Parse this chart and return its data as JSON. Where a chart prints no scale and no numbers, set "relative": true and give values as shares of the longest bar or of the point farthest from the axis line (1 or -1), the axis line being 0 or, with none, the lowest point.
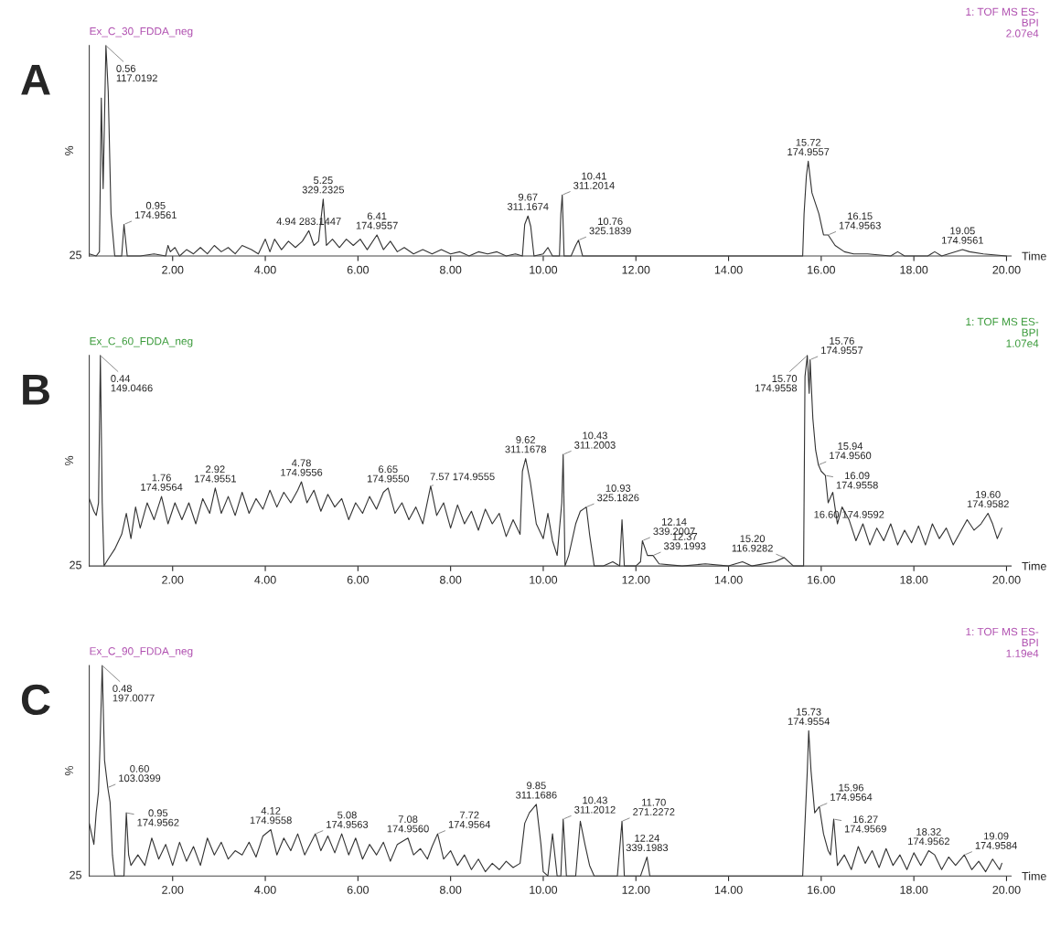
{
  "chart_data": [
    {
      "type": "line",
      "title": "Ex_C_30_FDDA_neg",
      "subtitle": "1: TOF MS ES-\nBPI\n2.07e4",
      "xlabel": "Time",
      "ylabel": "%",
      "relative": true,
      "xlim": [
        0.2,
        20.1
      ],
      "xticks": [
        {
          "value": 2,
          "label": "2.00"
        },
        {
          "value": 4,
          "label": "4.00"
        },
        {
          "value": 6,
          "label": "6.00"
        },
        {
          "value": 8,
          "label": "8.00"
        },
        {
          "value": 10,
          "label": "10.00"
        },
        {
          "value": 12,
          "label": "12.00"
        },
        {
          "value": 14,
          "label": "14.00"
        },
        {
          "value": 16,
          "label": "16.00"
        },
        {
          "value": 18,
          "label": "18.00"
        },
        {
          "value": 20,
          "label": "20.00"
        }
      ],
      "series": [
        {
          "color": "#333333",
          "x": [
            0.2,
            0.35,
            0.42,
            0.46,
            0.5,
            0.56,
            0.61,
            0.67,
            0.75,
            0.9,
            0.95,
            1.02,
            1.3,
            1.6,
            1.85,
            1.9,
            1.95,
            2.05,
            2.15,
            2.3,
            2.45,
            2.6,
            2.75,
            2.9,
            3.05,
            3.2,
            3.35,
            3.5,
            3.7,
            3.85,
            4.0,
            4.1,
            4.2,
            4.35,
            4.5,
            4.65,
            4.8,
            4.94,
            5.05,
            5.15,
            5.25,
            5.32,
            5.45,
            5.6,
            5.75,
            5.9,
            6.05,
            6.2,
            6.41,
            6.55,
            6.7,
            6.85,
            7.0,
            7.2,
            7.4,
            7.6,
            7.8,
            8.0,
            8.2,
            8.4,
            8.6,
            8.8,
            9.0,
            9.2,
            9.4,
            9.55,
            9.6,
            9.67,
            9.73,
            9.8,
            10.0,
            10.1,
            10.2,
            10.35,
            10.38,
            10.41,
            10.45,
            10.6,
            10.7,
            10.76,
            10.85,
            11.5,
            12.5,
            13.5,
            14.5,
            15.5,
            15.6,
            15.63,
            15.68,
            15.72,
            15.8,
            15.95,
            16.05,
            16.15,
            16.3,
            16.5,
            16.7,
            17.0,
            17.5,
            17.65,
            17.8,
            18.3,
            18.45,
            18.6,
            19.05,
            19.2,
            19.5,
            20.0
          ],
          "values": [
            0.01,
            0.0,
            0.02,
            0.75,
            0.32,
            1.0,
            0.78,
            0.2,
            0.0,
            0.0,
            0.15,
            0.0,
            0.0,
            0.01,
            0.0,
            0.05,
            0.02,
            0.04,
            0.0,
            0.03,
            0.01,
            0.04,
            0.01,
            0.05,
            0.02,
            0.04,
            0.01,
            0.05,
            0.03,
            0.01,
            0.08,
            0.02,
            0.08,
            0.03,
            0.07,
            0.04,
            0.07,
            0.12,
            0.05,
            0.07,
            0.27,
            0.05,
            0.08,
            0.04,
            0.08,
            0.05,
            0.08,
            0.03,
            0.1,
            0.03,
            0.07,
            0.02,
            0.04,
            0.01,
            0.03,
            0.01,
            0.03,
            0.01,
            0.02,
            0.0,
            0.02,
            0.01,
            0.02,
            0.0,
            0.01,
            0.0,
            0.15,
            0.19,
            0.14,
            0.0,
            0.01,
            0.04,
            0.0,
            0.0,
            0.2,
            0.29,
            0.0,
            0.0,
            0.05,
            0.075,
            0.0,
            0.0,
            0.0,
            0.0,
            0.0,
            0.0,
            0.0,
            0.2,
            0.38,
            0.45,
            0.3,
            0.2,
            0.1,
            0.1,
            0.05,
            0.02,
            0.01,
            0.01,
            0.0,
            0.02,
            0.0,
            0.0,
            0.02,
            0.0,
            0.03,
            0.02,
            0.01,
            0.0
          ]
        }
      ],
      "annotations": [
        "A",
        "25",
        {
          "text": "0.56\n117.0192",
          "x": 0.56,
          "y": 1.0
        },
        {
          "text": "0.95\n174.9561",
          "x": 0.95,
          "y": 0.15
        },
        {
          "text": "4.94 283.1447",
          "x": 4.94,
          "y": 0.12
        },
        {
          "text": "5.25\n329.2325",
          "x": 5.25,
          "y": 0.27
        },
        {
          "text": "6.41\n174.9557",
          "x": 6.41,
          "y": 0.1
        },
        {
          "text": "9.67\n311.1674",
          "x": 9.67,
          "y": 0.19
        },
        {
          "text": "10.41\n311.2014",
          "x": 10.41,
          "y": 0.29
        },
        {
          "text": "10.76\n325.1839",
          "x": 10.76,
          "y": 0.075
        },
        {
          "text": "15.72\n174.9557",
          "x": 15.72,
          "y": 0.45
        },
        {
          "text": "16.15\n174.9563",
          "x": 16.15,
          "y": 0.1
        },
        {
          "text": "19.05\n174.9561",
          "x": 19.05,
          "y": 0.03
        }
      ]
    },
    {
      "type": "line",
      "title": "Ex_C_60_FDDA_neg",
      "subtitle": "1: TOF MS ES-\nBPI\n1.07e4",
      "xlabel": "Time",
      "ylabel": "%",
      "relative": true,
      "xlim": [
        0.2,
        20.1
      ],
      "xticks": [
        {
          "value": 2,
          "label": "2.00"
        },
        {
          "value": 4,
          "label": "4.00"
        },
        {
          "value": 6,
          "label": "6.00"
        },
        {
          "value": 8,
          "label": "8.00"
        },
        {
          "value": 10,
          "label": "10.00"
        },
        {
          "value": 12,
          "label": "12.00"
        },
        {
          "value": 14,
          "label": "14.00"
        },
        {
          "value": 16,
          "label": "16.00"
        },
        {
          "value": 18,
          "label": "18.00"
        },
        {
          "value": 20,
          "label": "20.00"
        }
      ],
      "series": [
        {
          "color": "#333333",
          "x": [
            0.2,
            0.3,
            0.35,
            0.4,
            0.44,
            0.48,
            0.52,
            0.6,
            0.75,
            0.9,
            1.0,
            1.1,
            1.2,
            1.3,
            1.45,
            1.6,
            1.76,
            1.9,
            2.05,
            2.2,
            2.35,
            2.5,
            2.65,
            2.8,
            2.92,
            3.05,
            3.2,
            3.35,
            3.5,
            3.65,
            3.8,
            3.95,
            4.1,
            4.25,
            4.4,
            4.55,
            4.7,
            4.78,
            4.9,
            5.05,
            5.2,
            5.35,
            5.5,
            5.65,
            5.8,
            5.95,
            6.1,
            6.25,
            6.4,
            6.55,
            6.65,
            6.8,
            6.95,
            7.1,
            7.25,
            7.4,
            7.57,
            7.7,
            7.85,
            8.0,
            8.15,
            8.3,
            8.45,
            8.6,
            8.75,
            8.9,
            9.05,
            9.2,
            9.35,
            9.5,
            9.55,
            9.62,
            9.72,
            9.85,
            10.0,
            10.1,
            10.2,
            10.3,
            10.4,
            10.43,
            10.47,
            10.55,
            10.7,
            10.8,
            10.93,
            11.0,
            11.1,
            11.3,
            11.5,
            11.65,
            11.7,
            11.75,
            12.0,
            12.1,
            12.14,
            12.25,
            12.37,
            12.5,
            13.0,
            13.5,
            14.0,
            14.3,
            14.5,
            15.0,
            15.2,
            15.4,
            15.55,
            15.62,
            15.65,
            15.7,
            15.74,
            15.76,
            15.82,
            15.88,
            15.94,
            16.0,
            16.09,
            16.15,
            16.25,
            16.35,
            16.45,
            16.6,
            16.75,
            16.9,
            17.05,
            17.2,
            17.35,
            17.5,
            17.65,
            17.8,
            17.95,
            18.1,
            18.25,
            18.4,
            18.55,
            18.7,
            18.85,
            19.0,
            19.15,
            19.3,
            19.45,
            19.6,
            19.7,
            19.8,
            19.9
          ],
          "values": [
            0.32,
            0.26,
            0.24,
            0.3,
            1.0,
            0.3,
            0.0,
            0.03,
            0.08,
            0.15,
            0.25,
            0.13,
            0.28,
            0.18,
            0.3,
            0.22,
            0.33,
            0.2,
            0.3,
            0.22,
            0.3,
            0.2,
            0.32,
            0.25,
            0.37,
            0.25,
            0.33,
            0.24,
            0.35,
            0.25,
            0.32,
            0.27,
            0.36,
            0.28,
            0.35,
            0.3,
            0.36,
            0.4,
            0.3,
            0.36,
            0.26,
            0.34,
            0.28,
            0.32,
            0.22,
            0.3,
            0.25,
            0.33,
            0.27,
            0.35,
            0.37,
            0.25,
            0.3,
            0.22,
            0.28,
            0.2,
            0.38,
            0.24,
            0.3,
            0.18,
            0.29,
            0.2,
            0.26,
            0.17,
            0.27,
            0.2,
            0.25,
            0.14,
            0.22,
            0.15,
            0.45,
            0.51,
            0.4,
            0.2,
            0.13,
            0.25,
            0.12,
            0.05,
            0.3,
            0.53,
            0.0,
            0.05,
            0.2,
            0.26,
            0.28,
            0.15,
            0.0,
            0.0,
            0.02,
            0.0,
            0.22,
            0.0,
            0.0,
            0.02,
            0.12,
            0.05,
            0.05,
            0.01,
            0.0,
            0.01,
            0.0,
            0.02,
            0.0,
            0.02,
            0.04,
            0.0,
            0.0,
            0.0,
            0.9,
            1.0,
            0.82,
            0.98,
            0.7,
            0.55,
            0.48,
            0.45,
            0.43,
            0.3,
            0.35,
            0.2,
            0.28,
            0.22,
            0.12,
            0.2,
            0.1,
            0.18,
            0.12,
            0.2,
            0.1,
            0.17,
            0.11,
            0.19,
            0.1,
            0.2,
            0.13,
            0.18,
            0.1,
            0.16,
            0.22,
            0.17,
            0.2,
            0.25,
            0.2,
            0.13,
            0.18
          ]
        }
      ],
      "annotations": [
        "B",
        "25",
        {
          "text": "0.44\n149.0466",
          "x": 0.44,
          "y": 1.0
        },
        {
          "text": "1.76\n174.9564",
          "x": 1.76,
          "y": 0.33
        },
        {
          "text": "2.92\n174.9551",
          "x": 2.92,
          "y": 0.37
        },
        {
          "text": "4.78\n174.9556",
          "x": 4.78,
          "y": 0.4
        },
        {
          "text": "6.65\n174.9550",
          "x": 6.65,
          "y": 0.37
        },
        {
          "text": "7.57 174.9555",
          "x": 7.57,
          "y": 0.38
        },
        {
          "text": "9.62\n311.1678",
          "x": 9.62,
          "y": 0.51
        },
        {
          "text": "10.43\n311.2003",
          "x": 10.43,
          "y": 0.53
        },
        {
          "text": "10.93\n325.1826",
          "x": 10.93,
          "y": 0.28
        },
        {
          "text": "12.14\n339.2007",
          "x": 12.14,
          "y": 0.12
        },
        {
          "text": "12.37\n339.1993",
          "x": 12.37,
          "y": 0.05
        },
        {
          "text": "15.20\n116.9282",
          "x": 15.2,
          "y": 0.04
        },
        {
          "text": "15.70\n174.9558",
          "x": 15.7,
          "y": 1.0
        },
        {
          "text": "15.76\n174.9557",
          "x": 15.76,
          "y": 0.98
        },
        {
          "text": "15.94\n174.9560",
          "x": 15.94,
          "y": 0.48
        },
        {
          "text": "16.09\n174.9558",
          "x": 16.09,
          "y": 0.43
        },
        {
          "text": "16.60 174.9592",
          "x": 16.6,
          "y": 0.2
        },
        {
          "text": "19.60\n174.9582",
          "x": 19.6,
          "y": 0.25
        }
      ]
    },
    {
      "type": "line",
      "title": "Ex_C_90_FDDA_neg",
      "subtitle": "1: TOF MS ES-\nBPI\n1.19e4",
      "xlabel": "Time",
      "ylabel": "%",
      "relative": true,
      "xlim": [
        0.2,
        20.1
      ],
      "xticks": [
        {
          "value": 2,
          "label": "2.00"
        },
        {
          "value": 4,
          "label": "4.00"
        },
        {
          "value": 6,
          "label": "6.00"
        },
        {
          "value": 8,
          "label": "8.00"
        },
        {
          "value": 10,
          "label": "10.00"
        },
        {
          "value": 12,
          "label": "12.00"
        },
        {
          "value": 14,
          "label": "14.00"
        },
        {
          "value": 16,
          "label": "16.00"
        },
        {
          "value": 18,
          "label": "18.00"
        },
        {
          "value": 20,
          "label": "20.00"
        }
      ],
      "series": [
        {
          "color": "#333333",
          "x": [
            0.2,
            0.3,
            0.35,
            0.4,
            0.43,
            0.48,
            0.53,
            0.6,
            0.65,
            0.7,
            0.75,
            0.95,
            1.0,
            1.05,
            1.1,
            1.25,
            1.4,
            1.55,
            1.7,
            1.85,
            2.0,
            2.15,
            2.3,
            2.45,
            2.6,
            2.75,
            2.9,
            3.05,
            3.2,
            3.35,
            3.5,
            3.65,
            3.8,
            3.95,
            4.12,
            4.25,
            4.4,
            4.55,
            4.7,
            4.85,
            5.08,
            5.2,
            5.35,
            5.5,
            5.65,
            5.8,
            5.95,
            6.1,
            6.25,
            6.4,
            6.55,
            6.7,
            6.85,
            7.08,
            7.2,
            7.35,
            7.5,
            7.6,
            7.72,
            7.85,
            8.0,
            8.15,
            8.3,
            8.45,
            8.6,
            8.75,
            8.9,
            9.05,
            9.2,
            9.35,
            9.5,
            9.6,
            9.7,
            9.85,
            9.95,
            10.0,
            10.1,
            10.2,
            10.3,
            10.38,
            10.43,
            10.5,
            10.7,
            10.8,
            10.9,
            11.0,
            11.1,
            11.6,
            11.7,
            11.75,
            12.1,
            12.24,
            12.3,
            12.5,
            13.5,
            14.5,
            15.6,
            15.7,
            15.73,
            15.78,
            15.86,
            15.96,
            16.05,
            16.15,
            16.2,
            16.27,
            16.35,
            16.5,
            16.65,
            16.8,
            16.95,
            17.1,
            17.25,
            17.4,
            17.55,
            17.7,
            17.85,
            18.0,
            18.15,
            18.32,
            18.45,
            18.6,
            18.75,
            18.9,
            19.09,
            19.25,
            19.4,
            19.55,
            19.7,
            19.85,
            19.9
          ],
          "values": [
            0.25,
            0.15,
            0.3,
            0.4,
            0.6,
            1.0,
            0.55,
            0.42,
            0.35,
            0.1,
            0.0,
            0.0,
            0.3,
            0.1,
            0.05,
            0.1,
            0.05,
            0.18,
            0.08,
            0.15,
            0.05,
            0.16,
            0.07,
            0.14,
            0.05,
            0.18,
            0.1,
            0.16,
            0.08,
            0.12,
            0.1,
            0.16,
            0.09,
            0.19,
            0.22,
            0.1,
            0.18,
            0.12,
            0.2,
            0.1,
            0.2,
            0.12,
            0.19,
            0.11,
            0.2,
            0.1,
            0.18,
            0.08,
            0.15,
            0.1,
            0.16,
            0.07,
            0.15,
            0.18,
            0.1,
            0.13,
            0.08,
            0.14,
            0.2,
            0.08,
            0.12,
            0.05,
            0.1,
            0.03,
            0.08,
            0.02,
            0.06,
            0.03,
            0.07,
            0.04,
            0.06,
            0.25,
            0.3,
            0.34,
            0.15,
            0.02,
            0.0,
            0.2,
            0.0,
            0.0,
            0.27,
            0.0,
            0.0,
            0.26,
            0.15,
            0.05,
            0.0,
            0.0,
            0.26,
            0.0,
            0.0,
            0.09,
            0.0,
            0.0,
            0.0,
            0.0,
            0.0,
            0.5,
            0.69,
            0.5,
            0.3,
            0.33,
            0.2,
            0.12,
            0.1,
            0.27,
            0.05,
            0.1,
            0.03,
            0.14,
            0.06,
            0.12,
            0.04,
            0.13,
            0.05,
            0.1,
            0.03,
            0.11,
            0.05,
            0.12,
            0.1,
            0.03,
            0.09,
            0.05,
            0.1,
            0.03,
            0.07,
            0.02,
            0.08,
            0.03,
            0.06
          ]
        }
      ],
      "annotations": [
        "C",
        "25",
        {
          "text": "0.48\n197.0077",
          "x": 0.48,
          "y": 1.0
        },
        {
          "text": "0.60\n103.0399",
          "x": 0.6,
          "y": 0.42
        },
        {
          "text": "0.95\n174.9562",
          "x": 1.0,
          "y": 0.3
        },
        {
          "text": "4.12\n174.9558",
          "x": 4.12,
          "y": 0.22
        },
        {
          "text": "5.08\n174.9563",
          "x": 5.08,
          "y": 0.2
        },
        {
          "text": "7.08\n174.9560",
          "x": 7.08,
          "y": 0.18
        },
        {
          "text": "7.72\n174.9564",
          "x": 7.72,
          "y": 0.2
        },
        {
          "text": "9.85\n311.1686",
          "x": 9.85,
          "y": 0.34
        },
        {
          "text": "10.43\n311.2012",
          "x": 10.43,
          "y": 0.27
        },
        {
          "text": "11.70\n271.2272",
          "x": 11.7,
          "y": 0.26
        },
        {
          "text": "12.24\n339.1983",
          "x": 12.24,
          "y": 0.09
        },
        {
          "text": "15.73\n174.9554",
          "x": 15.73,
          "y": 0.69
        },
        {
          "text": "15.96\n174.9564",
          "x": 15.96,
          "y": 0.33
        },
        {
          "text": "16.27\n174.9569",
          "x": 16.27,
          "y": 0.27
        },
        {
          "text": "18.32\n174.9562",
          "x": 18.32,
          "y": 0.12
        },
        {
          "text": "19.09\n174.9584",
          "x": 19.09,
          "y": 0.1
        }
      ]
    }
  ]
}
